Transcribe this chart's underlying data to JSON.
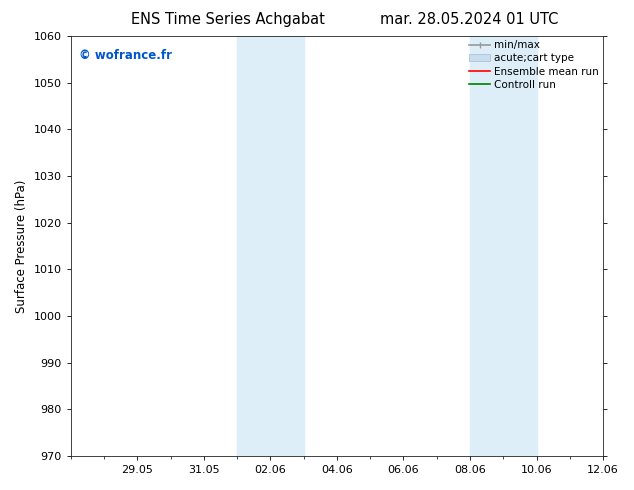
{
  "title_left": "ENS Time Series Achgabat",
  "title_right": "mar. 28.05.2024 01 UTC",
  "ylabel": "Surface Pressure (hPa)",
  "ylim": [
    970,
    1060
  ],
  "bg_color": "#ffffff",
  "shaded_color": "#ddeef8",
  "watermark_text": "© wofrance.fr",
  "watermark_color": "#0055cc",
  "title_fontsize": 10.5,
  "ylabel_fontsize": 8.5,
  "tick_fontsize": 8,
  "watermark_fontsize": 8.5,
  "legend_fontsize": 7.5,
  "band1_start_day": 5,
  "band1_mid_day": 6,
  "band1_end_day": 7,
  "band2_start_day": 12,
  "band2_mid_day": 13,
  "band2_end_day": 14,
  "xlim": [
    0,
    16
  ],
  "xtick_positions": [
    2,
    4,
    6,
    8,
    10,
    12,
    14,
    16
  ],
  "xtick_labels": [
    "29.05",
    "31.05",
    "02.06",
    "04.06",
    "06.06",
    "08.06",
    "10.06",
    "12.06"
  ],
  "legend_labels": [
    "min/max",
    "acute;cart type",
    "Ensemble mean run",
    "Controll run"
  ],
  "legend_colors": [
    "#999999",
    "#c8ddef",
    "red",
    "green"
  ]
}
